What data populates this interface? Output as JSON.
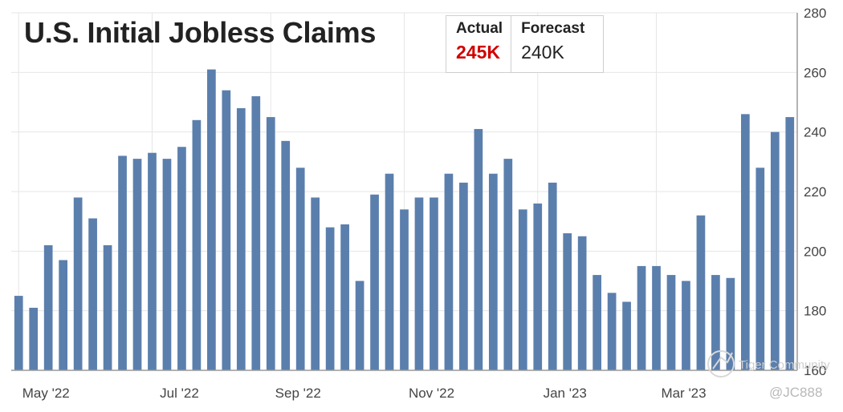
{
  "chart_data": {
    "type": "bar",
    "title": "U.S. Initial Jobless Claims",
    "color": "#5b7fad",
    "ylim": [
      160,
      280
    ],
    "yticks": [
      160,
      180,
      200,
      220,
      240,
      260,
      280
    ],
    "grid": true,
    "y_axis_side": "right",
    "x_labels": [
      "May '22",
      "Jul '22",
      "Sep '22",
      "Nov '22",
      "Jan '23",
      "Mar '23"
    ],
    "values": [
      185,
      181,
      202,
      197,
      218,
      211,
      202,
      232,
      231,
      233,
      231,
      235,
      244,
      261,
      254,
      248,
      252,
      245,
      237,
      228,
      218,
      208,
      209,
      190,
      219,
      226,
      214,
      218,
      218,
      226,
      223,
      241,
      226,
      231,
      214,
      216,
      223,
      206,
      205,
      192,
      186,
      183,
      195,
      195,
      192,
      190,
      212,
      192,
      191,
      246,
      228,
      240,
      245
    ]
  },
  "stats": {
    "actual_label": "Actual",
    "actual_value": "245K",
    "forecast_label": "Forecast",
    "forecast_value": "240K"
  },
  "watermark": "Tiger Community",
  "handle": "@JC888"
}
